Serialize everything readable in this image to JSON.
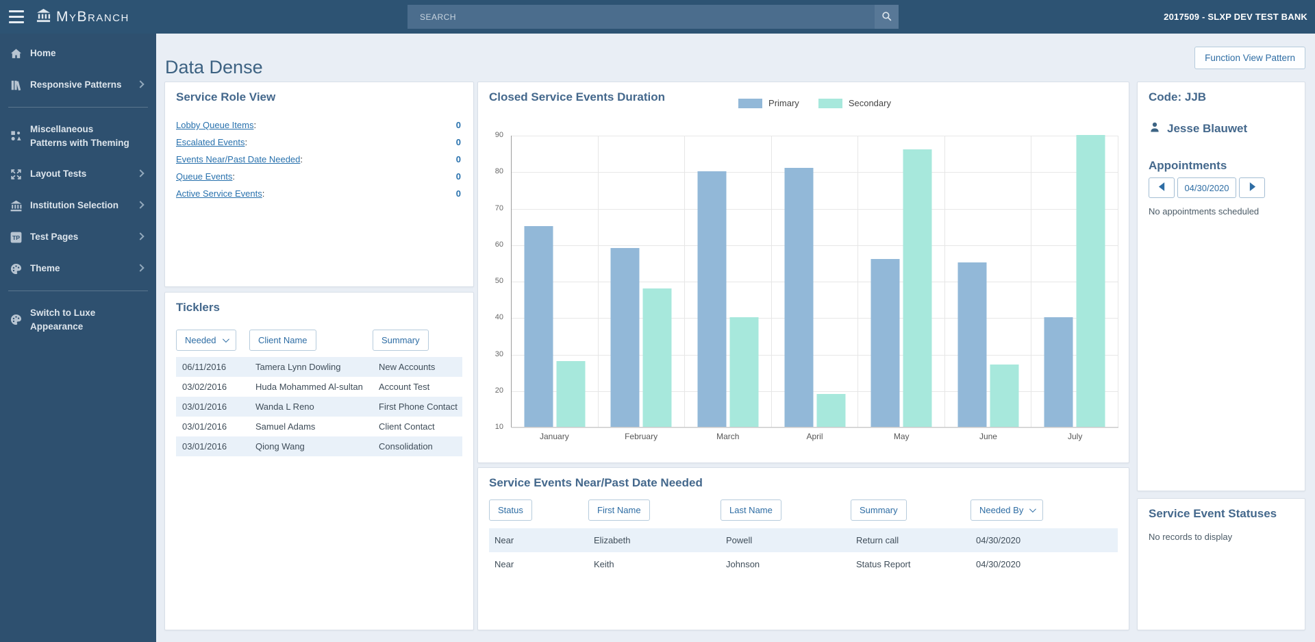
{
  "topbar": {
    "brand": "MyBranch",
    "search_placeholder": "SEARCH",
    "institution": "2017509 - SLXP DEV TEST BANK"
  },
  "sidebar": {
    "items": [
      {
        "label": "Home",
        "icon": "home-icon",
        "chevron": false
      },
      {
        "label": "Responsive Patterns",
        "icon": "books-icon",
        "chevron": true
      },
      {
        "label": "Miscellaneous Patterns with Theming",
        "icon": "shapes-icon",
        "chevron": false
      },
      {
        "label": "Layout Tests",
        "icon": "expand-icon",
        "chevron": true
      },
      {
        "label": "Institution Selection",
        "icon": "bank-icon",
        "chevron": true
      },
      {
        "label": "Test Pages",
        "icon": "tp-badge-icon",
        "chevron": true
      },
      {
        "label": "Theme",
        "icon": "palette-icon",
        "chevron": true
      }
    ],
    "footer_item": {
      "label": "Switch to Luxe Appearance",
      "icon": "palette-icon"
    }
  },
  "page": {
    "title": "Data Dense",
    "action_button": "Function View Pattern"
  },
  "service_role_view": {
    "title": "Service Role View",
    "colon": ":",
    "items": [
      {
        "label": "Lobby Queue Items",
        "value": "0"
      },
      {
        "label": "Escalated Events",
        "value": "0"
      },
      {
        "label": "Events Near/Past Date Needed",
        "value": "0"
      },
      {
        "label": "Queue Events",
        "value": "0"
      },
      {
        "label": "Active Service Events",
        "value": "0"
      }
    ]
  },
  "ticklers": {
    "title": "Ticklers",
    "columns": [
      {
        "label": "Needed",
        "sortable": true
      },
      {
        "label": "Client Name",
        "sortable": false
      },
      {
        "label": "Summary",
        "sortable": false
      }
    ],
    "rows": [
      [
        "06/11/2016",
        "Tamera Lynn Dowling",
        "New Accounts"
      ],
      [
        "03/02/2016",
        "Huda Mohammed Al-sultan",
        "Account Test"
      ],
      [
        "03/01/2016",
        "Wanda L Reno",
        "First Phone Contact"
      ],
      [
        "03/01/2016",
        "Samuel Adams",
        "Client Contact"
      ],
      [
        "03/01/2016",
        "Qiong Wang",
        "Consolidation"
      ]
    ]
  },
  "chart_data": {
    "type": "bar",
    "title": "Closed Service Events Duration",
    "categories": [
      "January",
      "February",
      "March",
      "April",
      "May",
      "June",
      "July"
    ],
    "series": [
      {
        "name": "Primary",
        "color": "#92b8d8",
        "values": [
          65,
          59,
          80,
          81,
          56,
          55,
          40
        ]
      },
      {
        "name": "Secondary",
        "color": "#a7e8dc",
        "values": [
          28,
          48,
          40,
          19,
          86,
          27,
          90
        ]
      }
    ],
    "ylim": [
      10,
      90
    ],
    "ytick_step": 10,
    "grid": true,
    "legend_position": "top-center",
    "xlabel": "",
    "ylabel": ""
  },
  "service_events": {
    "title": "Service Events Near/Past Date Needed",
    "columns": [
      {
        "label": "Status",
        "sortable": false
      },
      {
        "label": "First Name",
        "sortable": false
      },
      {
        "label": "Last Name",
        "sortable": false
      },
      {
        "label": "Summary",
        "sortable": false
      },
      {
        "label": "Needed By",
        "sortable": true
      }
    ],
    "rows": [
      [
        "Near",
        "Elizabeth",
        "Powell",
        "Return call",
        "04/30/2020"
      ],
      [
        "Near",
        "Keith",
        "Johnson",
        "Status Report",
        "04/30/2020"
      ]
    ]
  },
  "profile": {
    "code_label": "Code: JJB",
    "name": "Jesse Blauwet",
    "appointments_title": "Appointments",
    "date": "04/30/2020",
    "no_appointments": "No appointments scheduled"
  },
  "statuses": {
    "title": "Service Event Statuses",
    "empty": "No records to display"
  },
  "colors": {
    "topbar": "#2d5373",
    "sidebar": "#2e506f",
    "heading": "#44688c",
    "link": "#2871ad",
    "primary_bar": "#92b8d8",
    "secondary_bar": "#a7e8dc",
    "row_stripe": "#e9f1f9",
    "main_background": "#e9eef5"
  }
}
